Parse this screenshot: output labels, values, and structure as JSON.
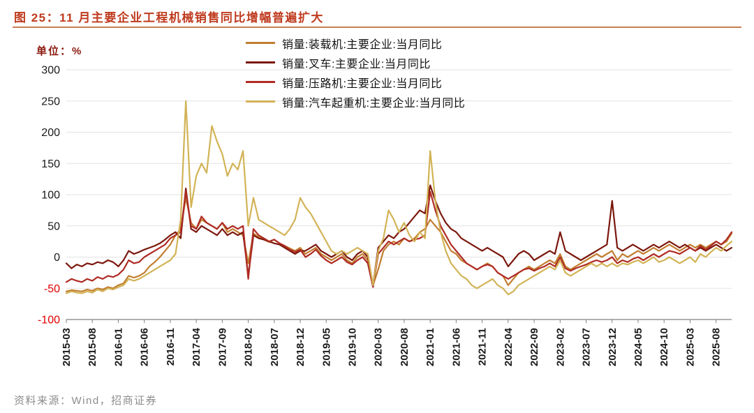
{
  "header": {
    "title": "图 25：11 月主要企业工程机械销售同比增幅普遍扩大"
  },
  "unit_label": "单位：%",
  "footer": {
    "source": "资料来源：Wind，招商证券"
  },
  "chart_data": {
    "type": "line",
    "title": "11 月主要企业工程机械销售同比增幅普遍扩大",
    "ylabel": "单位：%",
    "ylim": [
      -100,
      300
    ],
    "y_ticks": [
      300,
      250,
      200,
      150,
      100,
      50,
      0,
      -50,
      -100
    ],
    "grid": true,
    "legend_position": "top-center",
    "axis_color": "#808080",
    "grid_color": "#e2e2e2",
    "tick_label_color": "#1a1a1a",
    "negative_tick_color": "#e00000",
    "x_start": "2015-03",
    "x_end": "2025-11",
    "tick_every": 5,
    "x_tick_labels": [
      "2015-03",
      "2015-08",
      "2016-01",
      "2016-06",
      "2016-11",
      "2017-04",
      "2017-09",
      "2018-02",
      "2018-07",
      "2018-12",
      "2019-05",
      "2019-10",
      "2020-03",
      "2020-08",
      "2021-01",
      "2021-06",
      "2021-11",
      "2022-04",
      "2022-09",
      "2023-02",
      "2023-07",
      "2023-12",
      "2024-05",
      "2024-10",
      "2025-03",
      "2025-08"
    ],
    "series": [
      {
        "name": "销量:装载机:主要企业:当月同比",
        "color": "#c17e2f",
        "values": [
          -55,
          -53,
          -54,
          -55,
          -52,
          -54,
          -50,
          -52,
          -48,
          -50,
          -45,
          -42,
          -30,
          -33,
          -30,
          -25,
          -15,
          -8,
          0,
          10,
          20,
          35,
          45,
          95,
          55,
          45,
          60,
          55,
          50,
          45,
          55,
          40,
          45,
          40,
          35,
          -10,
          38,
          32,
          28,
          24,
          28,
          22,
          18,
          14,
          10,
          15,
          5,
          10,
          15,
          5,
          0,
          -5,
          0,
          5,
          -5,
          -10,
          0,
          5,
          -5,
          -45,
          -20,
          10,
          20,
          25,
          20,
          30,
          25,
          30,
          40,
          45,
          60,
          50,
          40,
          25,
          10,
          5,
          -5,
          -10,
          -15,
          -20,
          -15,
          -10,
          -15,
          -25,
          -30,
          -45,
          -35,
          -25,
          -20,
          -15,
          -20,
          -15,
          -10,
          -5,
          -10,
          5,
          -15,
          -20,
          -15,
          -10,
          -5,
          0,
          5,
          0,
          5,
          10,
          -5,
          5,
          0,
          5,
          10,
          5,
          10,
          15,
          10,
          15,
          20,
          15,
          10,
          15,
          20,
          15,
          20,
          15,
          20,
          25,
          20,
          25,
          38
        ]
      },
      {
        "name": "销量:叉车:主要企业:当月同比",
        "color": "#7b180d",
        "values": [
          -10,
          -18,
          -12,
          -15,
          -10,
          -12,
          -8,
          -10,
          -5,
          -8,
          -15,
          -5,
          10,
          5,
          8,
          12,
          15,
          18,
          22,
          28,
          35,
          40,
          30,
          110,
          45,
          40,
          50,
          45,
          40,
          35,
          45,
          35,
          40,
          35,
          40,
          -30,
          35,
          30,
          28,
          25,
          22,
          20,
          15,
          10,
          5,
          10,
          10,
          15,
          20,
          10,
          5,
          0,
          5,
          10,
          0,
          -5,
          5,
          10,
          0,
          -45,
          15,
          25,
          35,
          30,
          40,
          45,
          55,
          65,
          75,
          70,
          115,
          90,
          70,
          55,
          45,
          40,
          30,
          25,
          20,
          15,
          10,
          15,
          10,
          5,
          0,
          -15,
          -5,
          5,
          10,
          5,
          -5,
          0,
          5,
          10,
          5,
          40,
          10,
          5,
          0,
          -5,
          0,
          5,
          10,
          15,
          20,
          90,
          15,
          10,
          15,
          20,
          15,
          10,
          15,
          20,
          15,
          20,
          25,
          20,
          15,
          20,
          15,
          10,
          15,
          10,
          15,
          20,
          15,
          10,
          15
        ]
      },
      {
        "name": "销量:压路机:主要企业:当月同比",
        "color": "#af2b24",
        "values": [
          -40,
          -35,
          -38,
          -40,
          -35,
          -38,
          -32,
          -35,
          -30,
          -32,
          -28,
          -20,
          -5,
          -10,
          -8,
          0,
          5,
          10,
          15,
          20,
          30,
          35,
          40,
          105,
          50,
          45,
          65,
          55,
          50,
          45,
          55,
          45,
          50,
          45,
          50,
          -35,
          45,
          35,
          30,
          25,
          28,
          22,
          18,
          12,
          8,
          12,
          0,
          5,
          12,
          2,
          -5,
          -10,
          -5,
          0,
          -8,
          -12,
          -5,
          0,
          -10,
          -48,
          5,
          15,
          25,
          20,
          25,
          30,
          25,
          28,
          30,
          35,
          105,
          75,
          50,
          35,
          20,
          10,
          0,
          -10,
          -15,
          -20,
          -15,
          -12,
          -15,
          -25,
          -30,
          -35,
          -30,
          -25,
          -20,
          -18,
          -22,
          -18,
          -15,
          -10,
          -15,
          0,
          -18,
          -22,
          -18,
          -15,
          -12,
          -8,
          -5,
          -8,
          -5,
          0,
          -10,
          -5,
          -8,
          -3,
          0,
          -5,
          0,
          5,
          0,
          5,
          10,
          8,
          5,
          10,
          15,
          10,
          18,
          12,
          18,
          25,
          20,
          28,
          40
        ]
      },
      {
        "name": "销量:汽车起重机:主要企业:当月同比",
        "color": "#d2b356",
        "values": [
          -58,
          -55,
          -57,
          -58,
          -55,
          -57,
          -52,
          -55,
          -50,
          -52,
          -48,
          -45,
          -35,
          -38,
          -35,
          -30,
          -25,
          -20,
          -15,
          -10,
          -5,
          5,
          60,
          250,
          80,
          130,
          150,
          135,
          210,
          185,
          165,
          130,
          150,
          140,
          170,
          50,
          95,
          60,
          55,
          50,
          45,
          40,
          35,
          45,
          60,
          95,
          80,
          70,
          55,
          40,
          25,
          10,
          5,
          10,
          5,
          10,
          15,
          10,
          5,
          -45,
          10,
          30,
          75,
          60,
          40,
          55,
          35,
          25,
          40,
          30,
          170,
          90,
          40,
          10,
          -10,
          -20,
          -30,
          -35,
          -45,
          -50,
          -45,
          -40,
          -35,
          -45,
          -50,
          -60,
          -55,
          -45,
          -40,
          -35,
          -30,
          -25,
          -20,
          -15,
          -20,
          -5,
          -25,
          -30,
          -25,
          -20,
          -15,
          -10,
          -15,
          -10,
          -15,
          -10,
          -15,
          -10,
          -12,
          -8,
          -5,
          -10,
          -5,
          0,
          -8,
          -5,
          0,
          -5,
          -10,
          -5,
          0,
          -8,
          5,
          0,
          8,
          15,
          10,
          18,
          25
        ]
      }
    ]
  }
}
